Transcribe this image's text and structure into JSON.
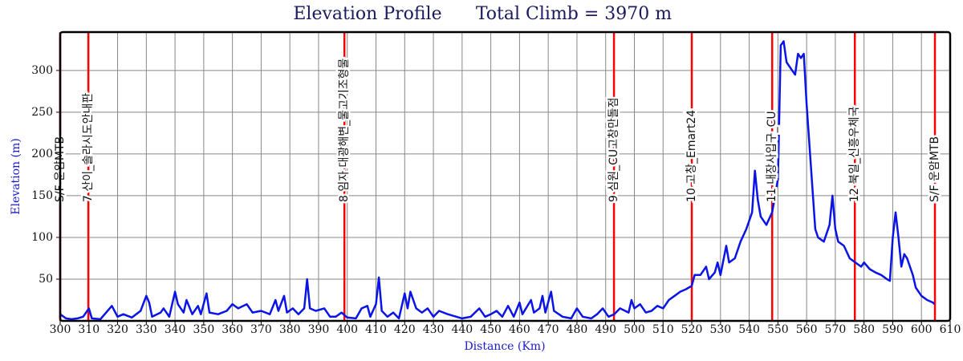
{
  "chart_data": {
    "type": "line",
    "title": "Elevation Profile",
    "subtitle": "Total Climb = 3970 m",
    "x_label": "Distance (Km)",
    "y_label": "Elevation (m)",
    "xlim": [
      300,
      610
    ],
    "ylim": [
      0,
      346
    ],
    "xticks": [
      300,
      310,
      320,
      330,
      340,
      350,
      360,
      370,
      380,
      390,
      400,
      410,
      420,
      430,
      440,
      450,
      460,
      470,
      480,
      490,
      500,
      510,
      520,
      530,
      540,
      550,
      560,
      570,
      580,
      590,
      600,
      610
    ],
    "yticks": [
      50,
      100,
      150,
      200,
      250,
      300
    ],
    "grid": true,
    "series": [
      {
        "name": "Elevation",
        "color": "#0a14e6",
        "x": [
          300,
          302,
          304,
          306,
          308,
          310,
          311,
          314,
          318,
          320,
          322,
          325,
          328,
          330,
          331,
          332,
          335,
          336,
          338,
          340,
          341,
          343,
          344,
          346,
          348,
          349,
          351,
          352,
          355,
          358,
          360,
          362,
          365,
          367,
          370,
          373,
          375,
          376,
          378,
          379,
          381,
          383,
          385,
          386,
          387,
          389,
          392,
          394,
          396,
          398,
          400,
          403,
          405,
          407,
          408,
          410,
          411,
          412,
          414,
          416,
          418,
          420,
          421,
          422,
          424,
          426,
          428,
          430,
          432,
          435,
          438,
          440,
          443,
          446,
          448,
          450,
          452,
          454,
          456,
          458,
          460,
          461,
          464,
          465,
          467,
          468,
          469,
          471,
          472,
          475,
          478,
          480,
          482,
          485,
          487,
          489,
          491,
          493,
          495,
          498,
          499,
          500,
          502,
          504,
          506,
          508,
          510,
          512,
          514,
          516,
          518,
          520,
          521,
          523,
          525,
          526,
          528,
          529,
          530,
          532,
          533,
          535,
          537,
          539,
          541,
          542,
          543,
          544,
          546,
          548,
          550,
          551,
          552,
          553,
          555,
          556,
          557,
          558,
          559,
          560,
          562,
          563,
          564,
          566,
          568,
          569,
          570,
          571,
          573,
          575,
          577,
          579,
          580,
          582,
          584,
          586,
          588,
          589,
          590,
          591,
          592,
          593,
          594,
          595,
          597,
          598,
          600,
          602,
          604,
          604.5
        ],
        "values": [
          8,
          3,
          2,
          3,
          5,
          15,
          3,
          2,
          18,
          5,
          8,
          4,
          12,
          30,
          22,
          5,
          10,
          15,
          5,
          35,
          20,
          10,
          25,
          8,
          18,
          8,
          33,
          10,
          8,
          12,
          20,
          15,
          20,
          10,
          12,
          8,
          25,
          12,
          30,
          10,
          15,
          8,
          15,
          50,
          15,
          12,
          15,
          5,
          5,
          10,
          4,
          3,
          15,
          18,
          5,
          20,
          52,
          12,
          5,
          10,
          3,
          33,
          15,
          35,
          15,
          10,
          15,
          5,
          12,
          8,
          5,
          3,
          5,
          15,
          5,
          8,
          12,
          5,
          18,
          5,
          22,
          8,
          25,
          10,
          15,
          30,
          10,
          35,
          12,
          5,
          3,
          15,
          5,
          3,
          8,
          15,
          5,
          8,
          15,
          10,
          25,
          15,
          20,
          10,
          12,
          18,
          15,
          25,
          30,
          35,
          38,
          42,
          55,
          55,
          65,
          50,
          58,
          70,
          55,
          90,
          70,
          75,
          95,
          110,
          130,
          180,
          145,
          125,
          115,
          130,
          170,
          330,
          335,
          310,
          300,
          295,
          320,
          315,
          320,
          260,
          160,
          110,
          100,
          95,
          115,
          150,
          110,
          95,
          90,
          75,
          70,
          65,
          70,
          62,
          58,
          55,
          50,
          48,
          100,
          130,
          100,
          65,
          80,
          75,
          55,
          40,
          30,
          25,
          22,
          20
        ]
      }
    ],
    "marker_color": "#ff0000",
    "markers": [
      {
        "x": 300,
        "label": "S/F 운암MTB"
      },
      {
        "x": 309.8,
        "label": "7 산이_솔라시도안내판"
      },
      {
        "x": 399,
        "label": "8 임자 대광해변_물고기조형물"
      },
      {
        "x": 492.9,
        "label": "9 심원_CU고창만돌점"
      },
      {
        "x": 520,
        "label": "10 고창_Emart24"
      },
      {
        "x": 548,
        "label": "11 내장사입구_CU"
      },
      {
        "x": 576.8,
        "label": "12 북일_신흥우체국"
      },
      {
        "x": 604.7,
        "label": "S/F 운암MTB"
      }
    ]
  }
}
